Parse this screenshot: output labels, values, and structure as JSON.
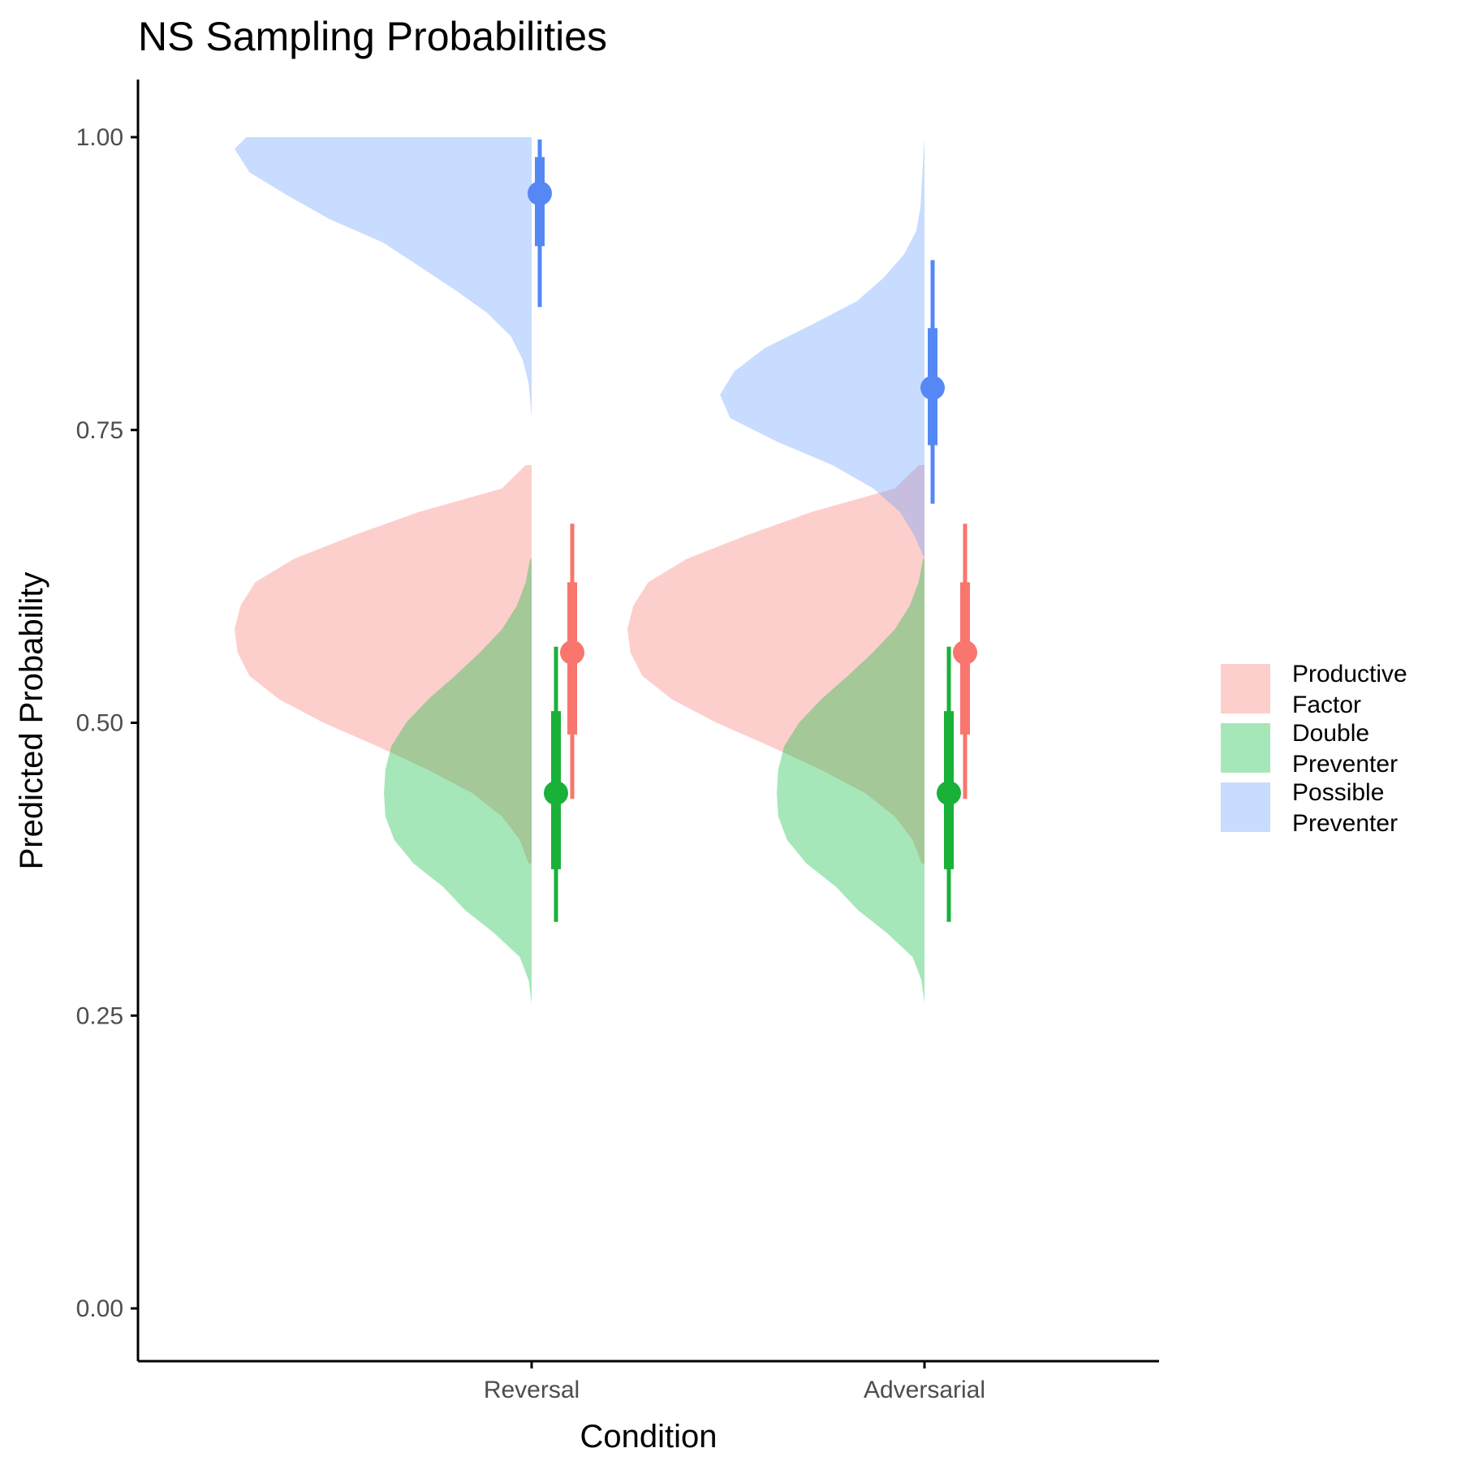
{
  "chart_data": {
    "type": "violin",
    "title": "NS Sampling Probabilities",
    "xlabel": "Condition",
    "ylabel": "Predicted Probability",
    "categories": [
      "Reversal",
      "Adversarial"
    ],
    "yticks": [
      "0.00",
      "0.25",
      "0.50",
      "0.75",
      "1.00"
    ],
    "ylim": [
      -0.04,
      1.05
    ],
    "grid": false,
    "legend_position": "right",
    "series": [
      {
        "name_lines": [
          "Productive",
          "Factor"
        ],
        "fill": "#f8766d",
        "point_color": "#f8766d",
        "summaries": [
          {
            "category": "Reversal",
            "point": 0.56,
            "inner": [
              0.49,
              0.62
            ],
            "outer": [
              0.435,
              0.67
            ]
          },
          {
            "category": "Adversarial",
            "point": 0.56,
            "inner": [
              0.49,
              0.62
            ],
            "outer": [
              0.435,
              0.67
            ]
          }
        ],
        "density": {
          "y": [
            0.72,
            0.7,
            0.68,
            0.66,
            0.64,
            0.62,
            0.6,
            0.58,
            0.56,
            0.54,
            0.52,
            0.5,
            0.48,
            0.46,
            0.44,
            0.42,
            0.4,
            0.38
          ],
          "w": [
            0.02,
            0.1,
            0.38,
            0.6,
            0.8,
            0.93,
            0.98,
            1.0,
            0.99,
            0.95,
            0.85,
            0.7,
            0.52,
            0.35,
            0.2,
            0.1,
            0.04,
            0.01
          ]
        }
      },
      {
        "name_lines": [
          "Double",
          "Preventer"
        ],
        "fill": "#00ba38",
        "point_color": "#1ab139",
        "summaries": [
          {
            "category": "Reversal",
            "point": 0.44,
            "inner": [
              0.375,
              0.51
            ],
            "outer": [
              0.33,
              0.565
            ]
          },
          {
            "category": "Adversarial",
            "point": 0.44,
            "inner": [
              0.375,
              0.51
            ],
            "outer": [
              0.33,
              0.565
            ]
          }
        ],
        "density": {
          "y": [
            0.64,
            0.62,
            0.6,
            0.58,
            0.56,
            0.54,
            0.52,
            0.5,
            0.48,
            0.46,
            0.44,
            0.42,
            0.4,
            0.38,
            0.36,
            0.34,
            0.32,
            0.3,
            0.28,
            0.26
          ],
          "w": [
            0.01,
            0.04,
            0.1,
            0.2,
            0.35,
            0.52,
            0.7,
            0.85,
            0.95,
            0.99,
            1.0,
            0.99,
            0.93,
            0.8,
            0.6,
            0.45,
            0.25,
            0.08,
            0.02,
            0.0
          ]
        }
      },
      {
        "name_lines": [
          "Possible",
          "Preventer"
        ],
        "fill": "#619cff",
        "point_color": "#5588f5",
        "summaries": [
          {
            "category": "Reversal",
            "point": 0.952,
            "inner": [
              0.907,
              0.983
            ],
            "outer": [
              0.855,
              0.998
            ]
          },
          {
            "category": "Adversarial",
            "point": 0.786,
            "inner": [
              0.737,
              0.837
            ],
            "outer": [
              0.687,
              0.895
            ]
          }
        ],
        "densities": [
          {
            "y": [
              1.0,
              0.99,
              0.97,
              0.95,
              0.93,
              0.91,
              0.89,
              0.87,
              0.85,
              0.83,
              0.81,
              0.79,
              0.77,
              0.76
            ],
            "w": [
              0.96,
              1.0,
              0.95,
              0.82,
              0.68,
              0.5,
              0.38,
              0.26,
              0.15,
              0.07,
              0.03,
              0.01,
              0.003,
              0.0
            ]
          },
          {
            "y": [
              1.0,
              0.97,
              0.94,
              0.92,
              0.9,
              0.88,
              0.86,
              0.84,
              0.82,
              0.8,
              0.78,
              0.76,
              0.74,
              0.72,
              0.7,
              0.68,
              0.66,
              0.64
            ],
            "w": [
              0.0,
              0.01,
              0.02,
              0.04,
              0.1,
              0.2,
              0.33,
              0.55,
              0.78,
              0.93,
              1.0,
              0.95,
              0.72,
              0.45,
              0.25,
              0.12,
              0.05,
              0.0
            ]
          }
        ]
      }
    ],
    "legend_order": [
      0,
      1,
      2
    ]
  }
}
